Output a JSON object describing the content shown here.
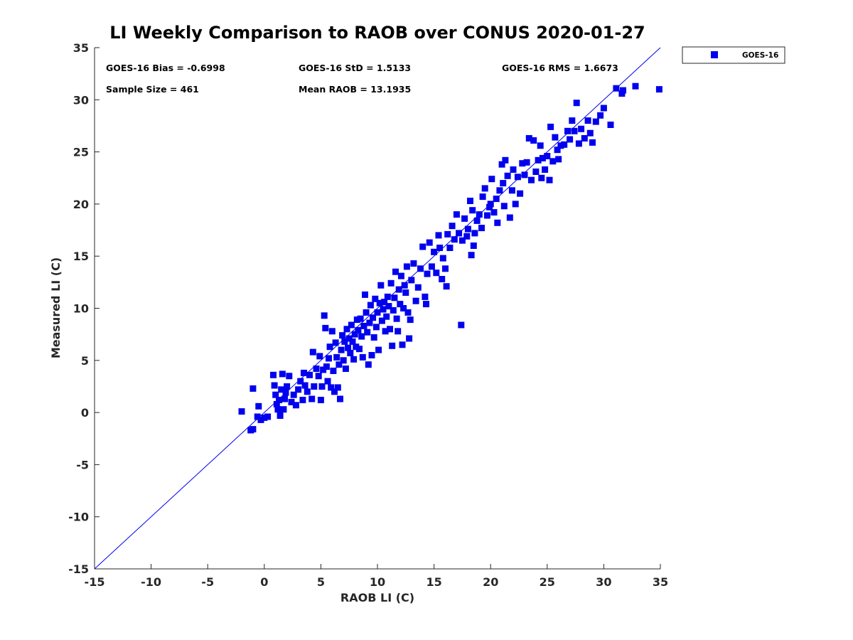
{
  "chart_data": {
    "type": "scatter",
    "title": "LI Weekly Comparison to RAOB over CONUS 2020-01-27",
    "xlabel": "RAOB LI (C)",
    "ylabel": "Measured LI (C)",
    "xlim": [
      -15,
      35
    ],
    "ylim": [
      -15,
      35
    ],
    "xticks": [
      -15,
      -10,
      -5,
      0,
      5,
      10,
      15,
      20,
      25,
      30,
      35
    ],
    "yticks": [
      -15,
      -10,
      -5,
      0,
      5,
      10,
      15,
      20,
      25,
      30,
      35
    ],
    "grid": false,
    "legend_position": "top-right outside",
    "reference_line": {
      "label": "1:1 line",
      "from": [
        -15,
        -15
      ],
      "to": [
        35,
        35
      ]
    },
    "stats": [
      "GOES-16 Bias = -0.6998",
      "GOES-16 StD = 1.5133",
      "GOES-16 RMS = 1.6673",
      "Sample Size = 461",
      "Mean RAOB = 13.1935"
    ],
    "series": [
      {
        "name": "GOES-16",
        "color": "#0000ee",
        "marker": "square",
        "points": [
          [
            -2.0,
            0.1
          ],
          [
            -1.2,
            -1.7
          ],
          [
            -1.0,
            -1.6
          ],
          [
            -1.0,
            2.3
          ],
          [
            -0.6,
            -0.4
          ],
          [
            -0.5,
            0.6
          ],
          [
            -0.3,
            -0.7
          ],
          [
            0.0,
            -0.5
          ],
          [
            0.3,
            -0.4
          ],
          [
            0.8,
            3.6
          ],
          [
            0.9,
            2.6
          ],
          [
            1.0,
            1.7
          ],
          [
            1.1,
            0.8
          ],
          [
            1.2,
            0.3
          ],
          [
            1.3,
            1.2
          ],
          [
            1.4,
            -0.3
          ],
          [
            1.5,
            2.2
          ],
          [
            1.6,
            3.7
          ],
          [
            1.7,
            0.3
          ],
          [
            1.8,
            1.3
          ],
          [
            1.9,
            1.9
          ],
          [
            2.0,
            2.5
          ],
          [
            2.2,
            3.5
          ],
          [
            2.4,
            1.0
          ],
          [
            2.6,
            1.7
          ],
          [
            2.8,
            0.7
          ],
          [
            3.0,
            2.2
          ],
          [
            3.2,
            3.0
          ],
          [
            3.4,
            1.2
          ],
          [
            3.5,
            3.8
          ],
          [
            3.6,
            2.6
          ],
          [
            3.8,
            2.0
          ],
          [
            4.0,
            3.6
          ],
          [
            4.2,
            1.3
          ],
          [
            4.4,
            2.5
          ],
          [
            4.6,
            4.2
          ],
          [
            4.3,
            5.8
          ],
          [
            4.8,
            3.5
          ],
          [
            4.9,
            5.4
          ],
          [
            5.0,
            1.2
          ],
          [
            5.1,
            2.5
          ],
          [
            5.2,
            4.1
          ],
          [
            5.3,
            9.3
          ],
          [
            5.4,
            8.1
          ],
          [
            5.5,
            4.4
          ],
          [
            5.6,
            3.0
          ],
          [
            5.7,
            5.2
          ],
          [
            5.8,
            6.3
          ],
          [
            5.9,
            2.4
          ],
          [
            6.0,
            7.8
          ],
          [
            6.1,
            4.0
          ],
          [
            6.2,
            2.0
          ],
          [
            6.3,
            6.7
          ],
          [
            6.4,
            5.3
          ],
          [
            6.5,
            2.4
          ],
          [
            6.6,
            4.6
          ],
          [
            6.7,
            1.3
          ],
          [
            6.8,
            6.0
          ],
          [
            6.9,
            7.4
          ],
          [
            7.0,
            5.0
          ],
          [
            7.1,
            6.8
          ],
          [
            7.2,
            4.2
          ],
          [
            7.3,
            8.0
          ],
          [
            7.4,
            6.2
          ],
          [
            7.5,
            7.1
          ],
          [
            7.6,
            5.7
          ],
          [
            7.7,
            8.4
          ],
          [
            7.8,
            6.8
          ],
          [
            7.9,
            5.1
          ],
          [
            8.0,
            7.5
          ],
          [
            8.1,
            6.3
          ],
          [
            8.2,
            8.9
          ],
          [
            8.3,
            7.9
          ],
          [
            8.4,
            6.1
          ],
          [
            8.5,
            9.0
          ],
          [
            8.6,
            7.3
          ],
          [
            8.7,
            5.3
          ],
          [
            8.8,
            8.3
          ],
          [
            8.9,
            11.3
          ],
          [
            9.0,
            9.6
          ],
          [
            9.1,
            7.7
          ],
          [
            9.2,
            4.6
          ],
          [
            9.3,
            8.6
          ],
          [
            9.4,
            10.3
          ],
          [
            9.5,
            5.5
          ],
          [
            9.6,
            9.1
          ],
          [
            9.7,
            7.2
          ],
          [
            9.8,
            10.9
          ],
          [
            9.9,
            8.2
          ],
          [
            10.0,
            9.6
          ],
          [
            10.1,
            6.0
          ],
          [
            10.2,
            10.5
          ],
          [
            10.3,
            12.2
          ],
          [
            10.4,
            8.8
          ],
          [
            10.5,
            9.9
          ],
          [
            10.6,
            10.6
          ],
          [
            10.7,
            7.8
          ],
          [
            10.8,
            9.2
          ],
          [
            10.9,
            11.1
          ],
          [
            11.0,
            10.2
          ],
          [
            11.1,
            8.0
          ],
          [
            11.2,
            12.4
          ],
          [
            11.3,
            6.4
          ],
          [
            11.4,
            9.8
          ],
          [
            11.5,
            11.0
          ],
          [
            11.6,
            13.5
          ],
          [
            11.7,
            9.0
          ],
          [
            11.8,
            7.8
          ],
          [
            11.9,
            11.8
          ],
          [
            12.0,
            10.4
          ],
          [
            12.1,
            13.1
          ],
          [
            12.2,
            6.5
          ],
          [
            12.3,
            10.0
          ],
          [
            12.4,
            12.2
          ],
          [
            12.5,
            11.5
          ],
          [
            12.6,
            14.0
          ],
          [
            12.7,
            9.6
          ],
          [
            12.8,
            7.1
          ],
          [
            12.9,
            8.9
          ],
          [
            13.0,
            12.7
          ],
          [
            13.2,
            14.3
          ],
          [
            13.4,
            10.7
          ],
          [
            13.6,
            12.0
          ],
          [
            13.8,
            13.8
          ],
          [
            14.0,
            15.9
          ],
          [
            14.2,
            11.1
          ],
          [
            14.3,
            10.4
          ],
          [
            14.4,
            13.3
          ],
          [
            14.6,
            16.3
          ],
          [
            14.8,
            14.0
          ],
          [
            15.0,
            15.4
          ],
          [
            15.2,
            13.4
          ],
          [
            15.4,
            17.0
          ],
          [
            15.5,
            15.8
          ],
          [
            15.7,
            12.8
          ],
          [
            15.8,
            14.8
          ],
          [
            16.0,
            13.8
          ],
          [
            16.1,
            12.1
          ],
          [
            16.2,
            17.1
          ],
          [
            16.4,
            15.8
          ],
          [
            16.6,
            17.9
          ],
          [
            16.8,
            16.6
          ],
          [
            17.0,
            19.0
          ],
          [
            17.2,
            17.2
          ],
          [
            17.4,
            8.4
          ],
          [
            17.5,
            16.5
          ],
          [
            17.7,
            18.6
          ],
          [
            17.9,
            16.9
          ],
          [
            18.0,
            17.6
          ],
          [
            18.2,
            20.3
          ],
          [
            18.3,
            15.1
          ],
          [
            18.4,
            19.4
          ],
          [
            18.5,
            16.0
          ],
          [
            18.6,
            17.2
          ],
          [
            18.8,
            18.4
          ],
          [
            19.0,
            19.0
          ],
          [
            19.2,
            17.7
          ],
          [
            19.3,
            20.7
          ],
          [
            19.5,
            21.5
          ],
          [
            19.7,
            18.9
          ],
          [
            19.9,
            19.7
          ],
          [
            20.0,
            20.0
          ],
          [
            20.1,
            22.4
          ],
          [
            20.3,
            19.2
          ],
          [
            20.5,
            20.5
          ],
          [
            20.6,
            18.2
          ],
          [
            20.8,
            21.3
          ],
          [
            21.0,
            23.8
          ],
          [
            21.1,
            22.0
          ],
          [
            21.2,
            19.8
          ],
          [
            21.3,
            24.2
          ],
          [
            21.5,
            22.7
          ],
          [
            21.7,
            18.7
          ],
          [
            21.9,
            21.3
          ],
          [
            22.0,
            23.3
          ],
          [
            22.2,
            20.0
          ],
          [
            22.4,
            22.6
          ],
          [
            22.6,
            21.0
          ],
          [
            22.8,
            23.9
          ],
          [
            23.0,
            22.8
          ],
          [
            23.2,
            24.0
          ],
          [
            23.4,
            26.3
          ],
          [
            23.6,
            22.3
          ],
          [
            23.8,
            26.1
          ],
          [
            24.0,
            23.1
          ],
          [
            24.2,
            24.2
          ],
          [
            24.4,
            25.6
          ],
          [
            24.5,
            22.5
          ],
          [
            24.6,
            24.4
          ],
          [
            24.8,
            23.3
          ],
          [
            25.0,
            24.6
          ],
          [
            25.2,
            22.3
          ],
          [
            25.3,
            27.4
          ],
          [
            25.5,
            24.1
          ],
          [
            25.7,
            26.4
          ],
          [
            25.9,
            25.2
          ],
          [
            26.0,
            24.3
          ],
          [
            26.2,
            25.6
          ],
          [
            26.5,
            25.7
          ],
          [
            26.8,
            27.0
          ],
          [
            27.0,
            26.2
          ],
          [
            27.2,
            28.0
          ],
          [
            27.4,
            27.0
          ],
          [
            27.6,
            29.7
          ],
          [
            27.8,
            25.8
          ],
          [
            28.0,
            27.2
          ],
          [
            28.3,
            26.3
          ],
          [
            28.6,
            28.0
          ],
          [
            28.8,
            26.8
          ],
          [
            29.0,
            25.9
          ],
          [
            29.3,
            27.9
          ],
          [
            29.7,
            28.5
          ],
          [
            30.0,
            29.2
          ],
          [
            30.6,
            27.6
          ],
          [
            31.1,
            31.1
          ],
          [
            31.6,
            30.6
          ],
          [
            31.7,
            30.9
          ],
          [
            32.8,
            31.3
          ],
          [
            34.9,
            31.0
          ]
        ]
      }
    ]
  }
}
